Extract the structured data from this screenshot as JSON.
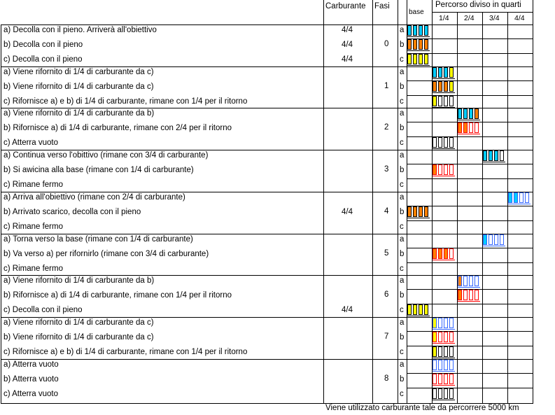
{
  "header": {
    "carburante": "Carburante",
    "fasi": "Fasi",
    "base": "base",
    "percorso": "Percorso diviso in quarti",
    "quarters": [
      "1/4",
      "2/4",
      "3/4",
      "4/4"
    ]
  },
  "colors": {
    "cyan": "#00ccff",
    "orange": "#ff8000",
    "yellow": "#ffff00",
    "blue": "#3366ff",
    "red": "#ff0000"
  },
  "phases": [
    {
      "fase": "0",
      "rows": [
        {
          "letter": "a",
          "text": "a) Decolla con il pieno.  Arriverà all'obiettivo",
          "fuel": "4/4"
        },
        {
          "letter": "b",
          "text": "b) Decolla con il pieno",
          "fuel": "4/4"
        },
        {
          "letter": "c",
          "text": "c) Decolla con il pieno",
          "fuel": "4/4"
        }
      ]
    },
    {
      "fase": "1",
      "rows": [
        {
          "letter": "a",
          "text": "a) Viene rifornito di 1/4 di carburante da c)",
          "fuel": ""
        },
        {
          "letter": "b",
          "text": "b) Viene rifornito di 1/4 di carburante da c)",
          "fuel": ""
        },
        {
          "letter": "c",
          "text": "c) Rifornisce a) e b) di 1/4 di carburante, rimane con 1/4 per il ritorno",
          "fuel": ""
        }
      ]
    },
    {
      "fase": "2",
      "rows": [
        {
          "letter": "a",
          "text": "a) Viene rifornito di 1/4 di carburante da b)",
          "fuel": ""
        },
        {
          "letter": "b",
          "text": "b) Rifornisce a) di 1/4 di carburante, rimane con 2/4 per il ritorno",
          "fuel": ""
        },
        {
          "letter": "c",
          "text": "c) Atterra vuoto",
          "fuel": ""
        }
      ]
    },
    {
      "fase": "3",
      "rows": [
        {
          "letter": "a",
          "text": "a) Continua verso l'obittivo (rimane con 3/4 di carburante)",
          "fuel": ""
        },
        {
          "letter": "b",
          "text": "b) Si awicina alla base (rimane con 1/4 di carburante)",
          "fuel": ""
        },
        {
          "letter": "c",
          "text": "c) Rimane fermo",
          "fuel": ""
        }
      ]
    },
    {
      "fase": "4",
      "rows": [
        {
          "letter": "a",
          "text": "a) Arriva all'obiettivo (rimane con 2/4 di carburante)",
          "fuel": ""
        },
        {
          "letter": "b",
          "text": "b) Arrivato scarico, decolla con il pieno",
          "fuel": "4/4"
        },
        {
          "letter": "c",
          "text": "c) Rimane fermo",
          "fuel": ""
        }
      ]
    },
    {
      "fase": "5",
      "rows": [
        {
          "letter": "a",
          "text": "a) Torna verso la base (rimane con 1/4 di carburante)",
          "fuel": ""
        },
        {
          "letter": "b",
          "text": "b) Va verso a) per rifornirlo (rimane con 3/4 di carburante)",
          "fuel": ""
        },
        {
          "letter": "c",
          "text": "c) Rimane fermo",
          "fuel": ""
        }
      ]
    },
    {
      "fase": "6",
      "rows": [
        {
          "letter": "a",
          "text": "a) Viene rifornito di 1/4 di carburante da b)",
          "fuel": ""
        },
        {
          "letter": "b",
          "text": "b) Rifornisce a) di 1/4 di carburante, rimane con 1/4 per il ritorno",
          "fuel": ""
        },
        {
          "letter": "c",
          "text": "c) Decolla con il pieno",
          "fuel": "4/4"
        }
      ]
    },
    {
      "fase": "7",
      "rows": [
        {
          "letter": "a",
          "text": "a) Viene rifornito di 1/4 di carburante da c)",
          "fuel": ""
        },
        {
          "letter": "b",
          "text": "b) Viene rifornito di 1/4 di carburante da c)",
          "fuel": ""
        },
        {
          "letter": "c",
          "text": "c) Rifornisce a) e b) di 1/4 di carburante, rimane con 1/4 per il ritorno",
          "fuel": ""
        }
      ]
    },
    {
      "fase": "8",
      "rows": [
        {
          "letter": "a",
          "text": "a) Atterra vuoto",
          "fuel": ""
        },
        {
          "letter": "b",
          "text": "b) Atterra vuoto",
          "fuel": ""
        },
        {
          "letter": "c",
          "text": "c) Atterra vuoto",
          "fuel": ""
        }
      ]
    }
  ],
  "tanks": [
    {
      "phase": 0,
      "row": 0,
      "col": 0,
      "level": 4,
      "color": "cyan"
    },
    {
      "phase": 0,
      "row": 1,
      "col": 0,
      "level": 4,
      "color": "orange"
    },
    {
      "phase": 0,
      "row": 2,
      "col": 0,
      "level": 4,
      "color": "yellow"
    },
    {
      "phase": 1,
      "row": 0,
      "col": 1,
      "level": 4,
      "color": "cyan",
      "partial": "yellow"
    },
    {
      "phase": 1,
      "row": 1,
      "col": 1,
      "level": 4,
      "color": "orange",
      "partial": "yellow"
    },
    {
      "phase": 1,
      "row": 2,
      "col": 1,
      "level": 1,
      "color": "yellow",
      "outline": "#000000"
    },
    {
      "phase": 2,
      "row": 0,
      "col": 2,
      "level": 4,
      "color": "cyan",
      "partial": "orange"
    },
    {
      "phase": 2,
      "row": 1,
      "col": 2,
      "level": 2,
      "color": "orange",
      "outline": "#ff0000"
    },
    {
      "phase": 2,
      "row": 2,
      "col": 1,
      "level": 0,
      "color": "yellow",
      "outline": "#000000"
    },
    {
      "phase": 3,
      "row": 0,
      "col": 3,
      "level": 3,
      "color": "cyan"
    },
    {
      "phase": 3,
      "row": 1,
      "col": 1,
      "level": 1,
      "color": "orange",
      "outline": "#ff0000"
    },
    {
      "phase": 4,
      "row": 0,
      "col": 4,
      "level": 2,
      "color": "cyan",
      "outline": "#3366ff"
    },
    {
      "phase": 4,
      "row": 1,
      "col": 0,
      "level": 4,
      "color": "orange"
    },
    {
      "phase": 5,
      "row": 0,
      "col": 3,
      "level": 1,
      "color": "cyan",
      "outline": "#3366ff"
    },
    {
      "phase": 5,
      "row": 1,
      "col": 1,
      "level": 3,
      "color": "orange",
      "outline": "#ff0000"
    },
    {
      "phase": 6,
      "row": 0,
      "col": 2,
      "level": 1,
      "color": "orange",
      "outline": "#3366ff"
    },
    {
      "phase": 6,
      "row": 1,
      "col": 2,
      "level": 1,
      "color": "orange",
      "outline": "#ff0000"
    },
    {
      "phase": 6,
      "row": 2,
      "col": 0,
      "level": 4,
      "color": "yellow"
    },
    {
      "phase": 7,
      "row": 0,
      "col": 1,
      "level": 1,
      "color": "yellow",
      "outline": "#3366ff"
    },
    {
      "phase": 7,
      "row": 1,
      "col": 1,
      "level": 1,
      "color": "yellow",
      "outline": "#ff0000"
    },
    {
      "phase": 7,
      "row": 2,
      "col": 1,
      "level": 1,
      "color": "yellow",
      "outline": "#000000"
    },
    {
      "phase": 8,
      "row": 0,
      "col": 1,
      "level": 0,
      "color": "cyan",
      "outline": "#3366ff"
    },
    {
      "phase": 8,
      "row": 1,
      "col": 1,
      "level": 0,
      "color": "orange",
      "outline": "#ff0000"
    },
    {
      "phase": 8,
      "row": 2,
      "col": 1,
      "level": 0,
      "color": "yellow",
      "outline": "#000000"
    }
  ],
  "footer": "Viene utilizzato carburante tale da percorrere 5000 km"
}
